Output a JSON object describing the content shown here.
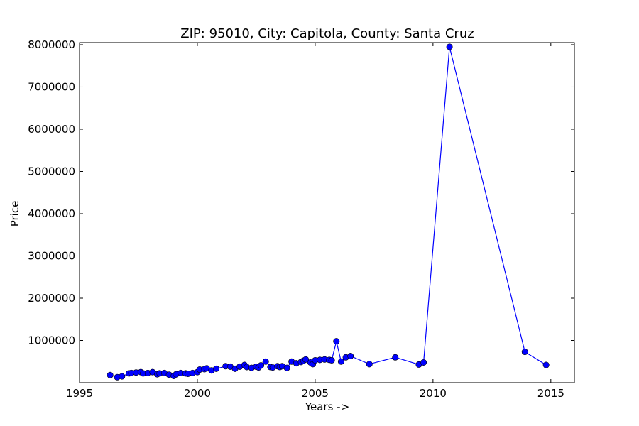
{
  "chart_data": {
    "type": "line",
    "title": "ZIP: 95010, City: Capitola, County: Santa Cruz",
    "xlabel": "Years ->",
    "ylabel": "Price",
    "xlim": [
      1995,
      2016
    ],
    "ylim": [
      0,
      8050000
    ],
    "xticks": [
      1995,
      2000,
      2005,
      2010,
      2015
    ],
    "yticks": [
      1000000,
      2000000,
      3000000,
      4000000,
      5000000,
      6000000,
      7000000,
      8000000
    ],
    "grid": false,
    "legend": "none",
    "series": [
      {
        "color": "#0000ff",
        "marker": "circle",
        "x": [
          1996.3,
          1996.6,
          1996.8,
          1997.1,
          1997.2,
          1997.4,
          1997.6,
          1997.7,
          1997.9,
          1998.1,
          1998.3,
          1998.4,
          1998.6,
          1998.8,
          1999.0,
          1999.1,
          1999.3,
          1999.5,
          1999.6,
          1999.8,
          2000.0,
          2000.1,
          2000.3,
          2000.4,
          2000.6,
          2000.8,
          2001.2,
          2001.4,
          2001.6,
          2001.8,
          2002.0,
          2002.1,
          2002.3,
          2002.5,
          2002.6,
          2002.7,
          2002.9,
          2003.1,
          2003.2,
          2003.4,
          2003.5,
          2003.6,
          2003.8,
          2004.0,
          2004.2,
          2004.4,
          2004.5,
          2004.6,
          2004.8,
          2004.9,
          2005.0,
          2005.2,
          2005.4,
          2005.6,
          2005.7,
          2005.9,
          2006.1,
          2006.3,
          2006.5,
          2007.3,
          2008.4,
          2009.4,
          2009.6,
          2010.7,
          2013.9,
          2014.8
        ],
        "y": [
          180000,
          130000,
          150000,
          220000,
          230000,
          240000,
          250000,
          220000,
          230000,
          250000,
          200000,
          220000,
          230000,
          190000,
          160000,
          200000,
          230000,
          220000,
          210000,
          230000,
          250000,
          310000,
          320000,
          340000,
          290000,
          330000,
          390000,
          380000,
          330000,
          380000,
          420000,
          370000,
          350000,
          380000,
          360000,
          410000,
          500000,
          370000,
          360000,
          390000,
          370000,
          390000,
          350000,
          500000,
          460000,
          490000,
          520000,
          550000,
          480000,
          440000,
          530000,
          540000,
          550000,
          540000,
          530000,
          980000,
          500000,
          600000,
          630000,
          440000,
          600000,
          430000,
          480000,
          7950000,
          730000,
          420000
        ]
      }
    ]
  }
}
